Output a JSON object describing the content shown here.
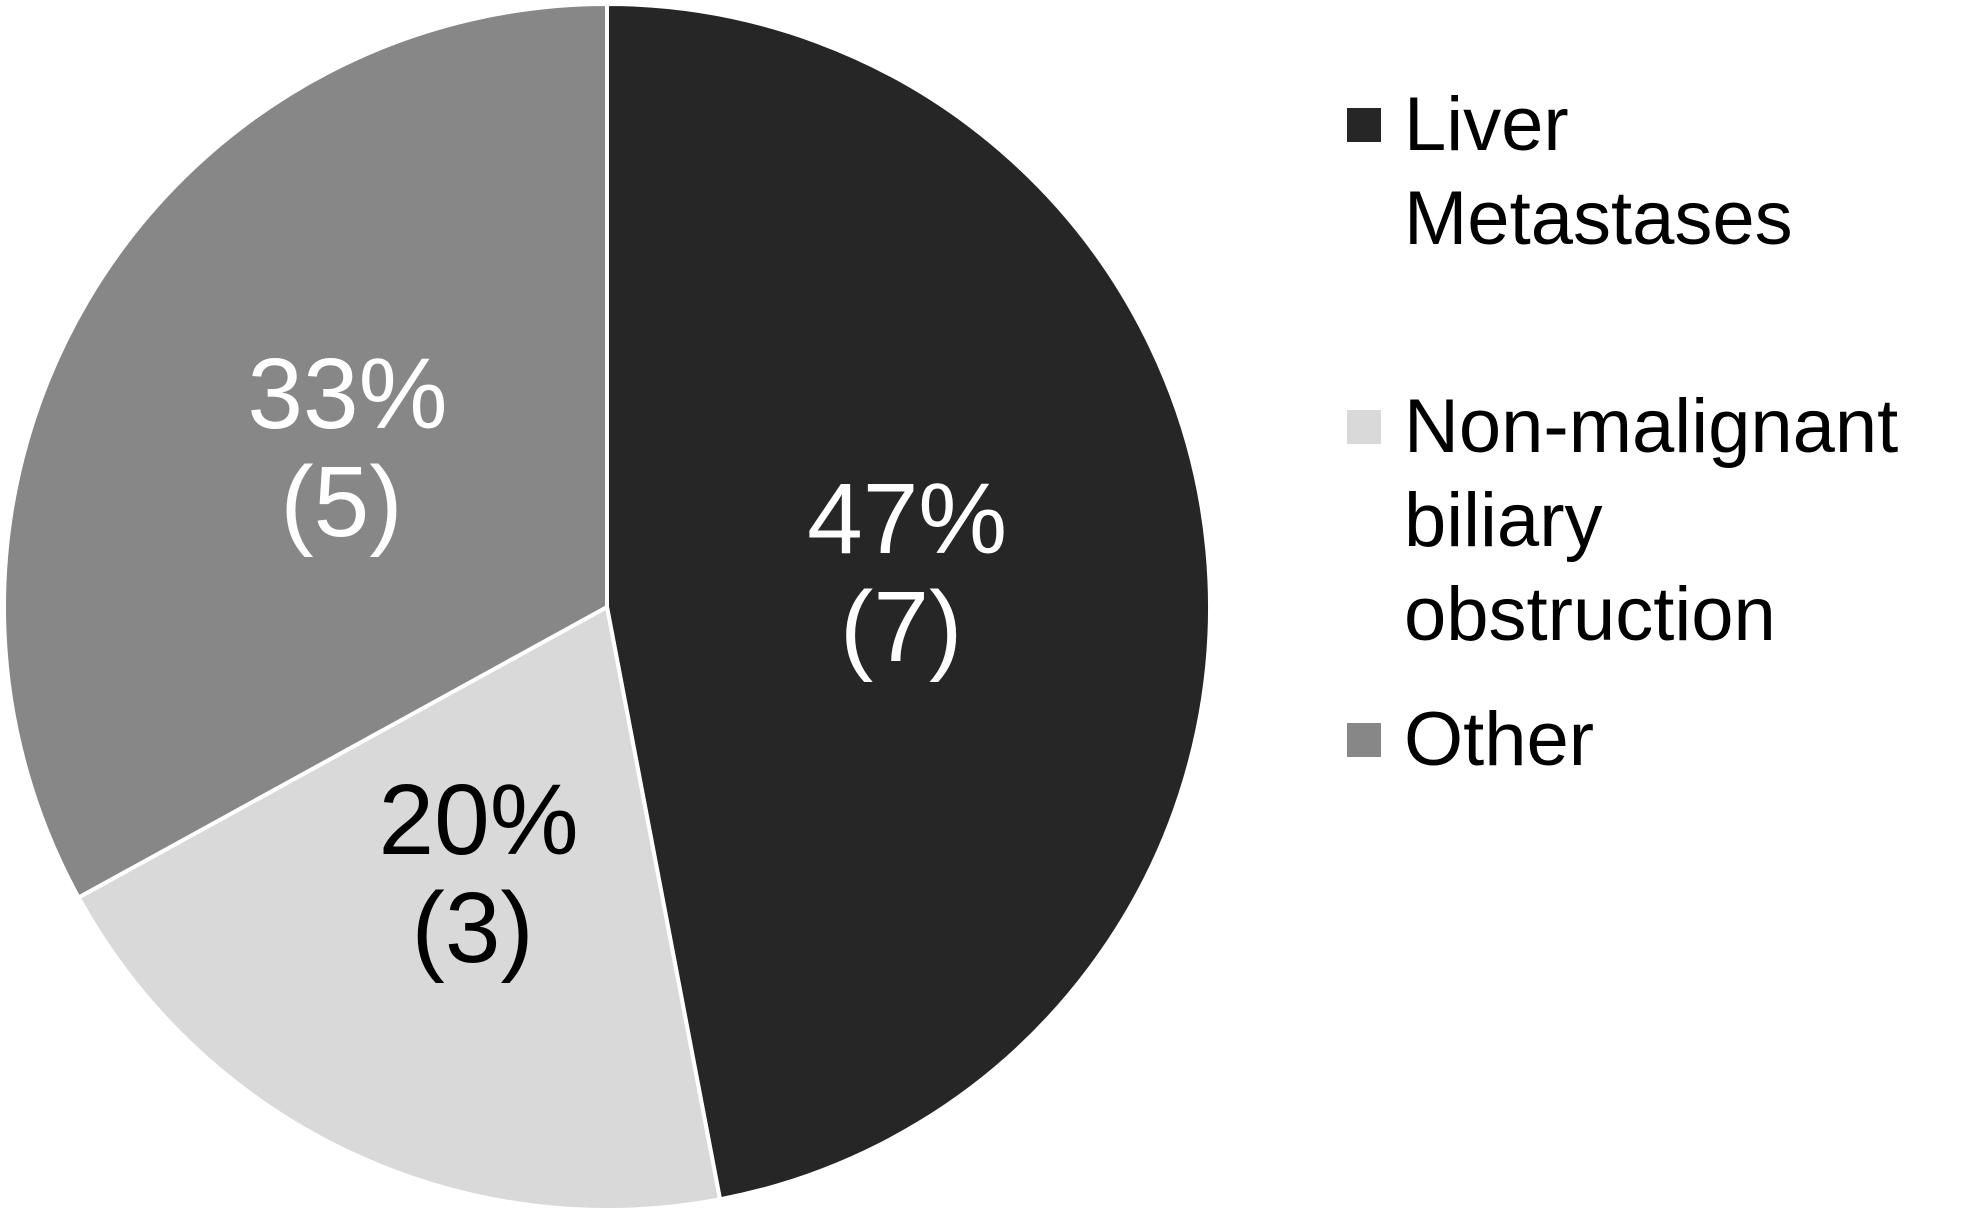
{
  "chart_data": {
    "type": "pie",
    "categories": [
      "Liver Metastases",
      "Non-malignant biliary obstruction",
      "Other"
    ],
    "values": [
      47,
      20,
      33
    ],
    "value_labels": [
      "47%",
      "20%",
      "33%"
    ],
    "counts": [
      7,
      3,
      5
    ],
    "count_labels": [
      "(7)",
      "(3)",
      "(5)"
    ],
    "colors": [
      "#262626",
      "#d9d9d9",
      "#878787"
    ],
    "legend": "right"
  }
}
